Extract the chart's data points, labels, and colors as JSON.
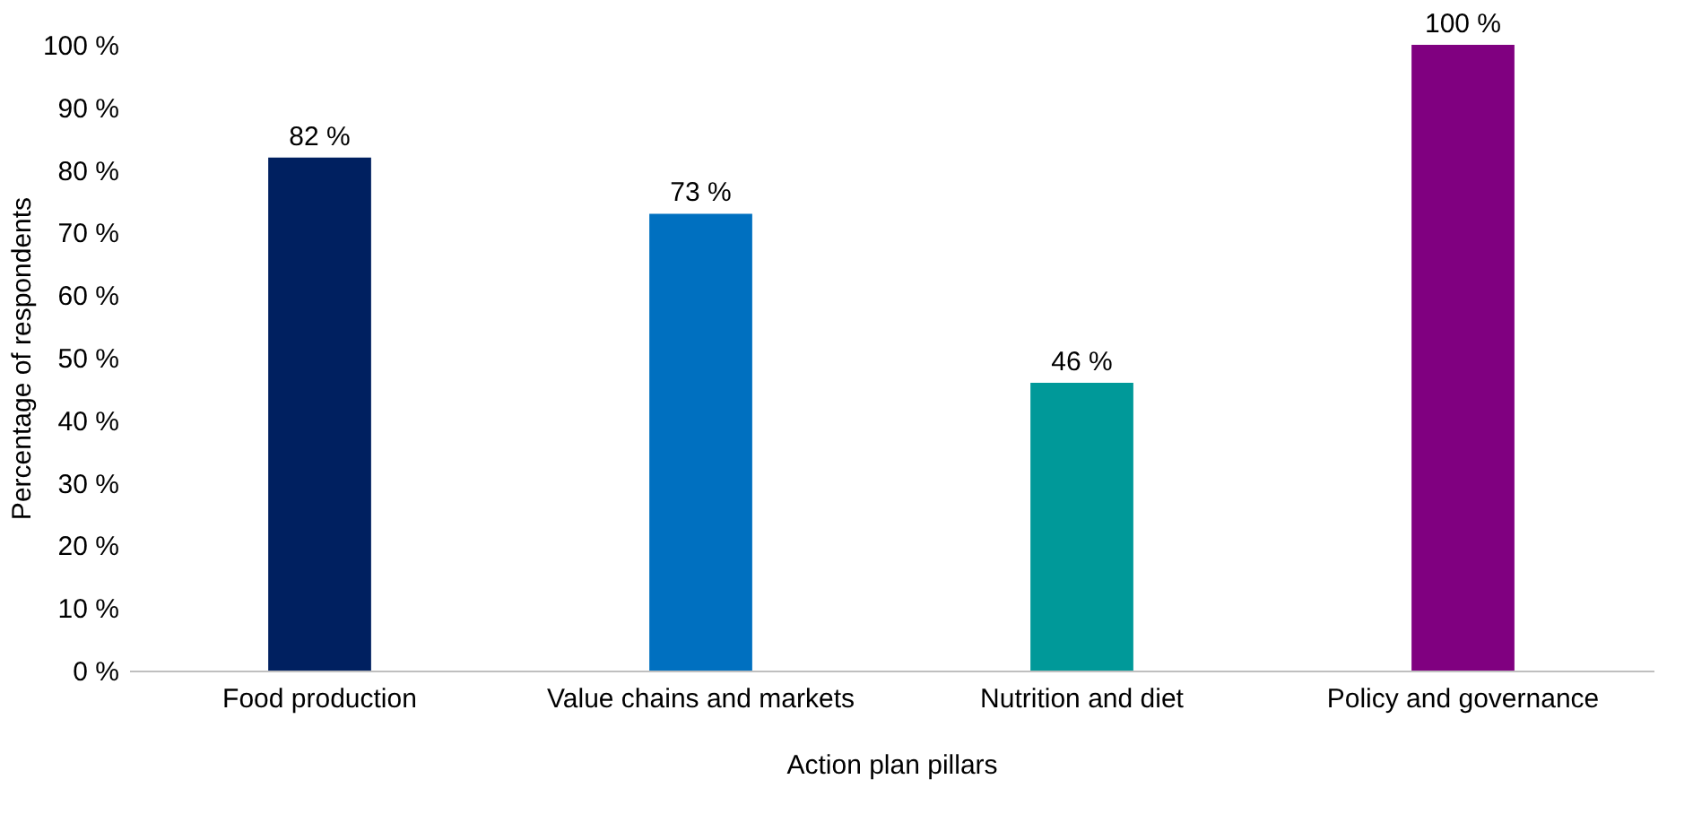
{
  "chart_data": {
    "type": "bar",
    "xlabel": "Action plan pillars",
    "ylabel": "Percentage of respondents",
    "categories": [
      "Food production",
      "Value chains and markets",
      "Nutrition and diet",
      "Policy and governance"
    ],
    "values": [
      82,
      73,
      46,
      100
    ],
    "colors": [
      "#002060",
      "#0070c0",
      "#009999",
      "#800080"
    ],
    "value_labels": [
      "82 %",
      "73 %",
      "46 %",
      "100 %"
    ],
    "ylim": [
      0,
      100
    ],
    "yticks": [
      {
        "value": 0,
        "label": "0 %"
      },
      {
        "value": 10,
        "label": "10 %"
      },
      {
        "value": 20,
        "label": "20 %"
      },
      {
        "value": 30,
        "label": "30 %"
      },
      {
        "value": 40,
        "label": "40 %"
      },
      {
        "value": 50,
        "label": "50 %"
      },
      {
        "value": 60,
        "label": "60 %"
      },
      {
        "value": 70,
        "label": "70 %"
      },
      {
        "value": 80,
        "label": "80 %"
      },
      {
        "value": 90,
        "label": "90 %"
      },
      {
        "value": 100,
        "label": "100 %"
      }
    ]
  }
}
